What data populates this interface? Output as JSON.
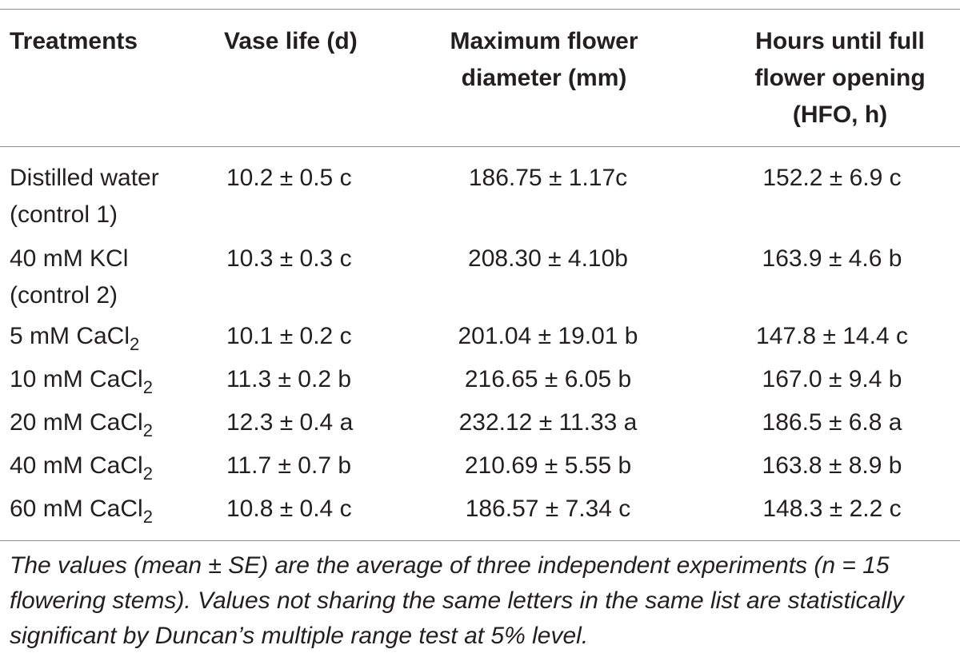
{
  "table": {
    "headers": {
      "treatments": "Treatments",
      "vase_life": "Vase life (d)",
      "max_diameter_line1": "Maximum flower",
      "max_diameter_line2": "diameter (mm)",
      "hfo_line1": "Hours until full",
      "hfo_line2": "flower opening",
      "hfo_line3": "(HFO, h)"
    },
    "rows": [
      {
        "treatment_line1": "Distilled water",
        "treatment_line2": "(control 1)",
        "vase_life": "10.2 ± 0.5 c",
        "max_diameter": "186.75 ± 1.17c",
        "hfo": "152.2 ± 6.9 c"
      },
      {
        "treatment_line1": "40 mM KCl",
        "treatment_line2": "(control 2)",
        "vase_life": "10.3 ± 0.3 c",
        "max_diameter": "208.30 ± 4.10b",
        "hfo": "163.9 ± 4.6 b"
      },
      {
        "treatment_prefix": "5 mM CaCl",
        "treatment_sub": "2",
        "vase_life": "10.1 ± 0.2 c",
        "max_diameter": "201.04 ± 19.01 b",
        "hfo": "147.8 ± 14.4 c"
      },
      {
        "treatment_prefix": "10 mM CaCl",
        "treatment_sub": "2",
        "vase_life": "11.3 ± 0.2 b",
        "max_diameter": "216.65 ± 6.05 b",
        "hfo": "167.0 ± 9.4 b"
      },
      {
        "treatment_prefix": "20 mM CaCl",
        "treatment_sub": "2",
        "vase_life": "12.3 ± 0.4 a",
        "max_diameter": "232.12 ± 11.33 a",
        "hfo": "186.5 ± 6.8 a"
      },
      {
        "treatment_prefix": "40 mM CaCl",
        "treatment_sub": "2",
        "vase_life": "11.7 ± 0.7 b",
        "max_diameter": "210.69 ± 5.55 b",
        "hfo": "163.8 ± 8.9 b"
      },
      {
        "treatment_prefix": "60 mM CaCl",
        "treatment_sub": "2",
        "vase_life": "10.8 ± 0.4 c",
        "max_diameter": "186.57 ± 7.34 c",
        "hfo": "148.3 ± 2.2 c"
      }
    ],
    "footnote": "The values (mean ± SE) are the average of three independent experiments (n = 15 flowering stems). Values not sharing the same letters in the same list are statistically significant by Duncan’s multiple range test at 5% level."
  }
}
